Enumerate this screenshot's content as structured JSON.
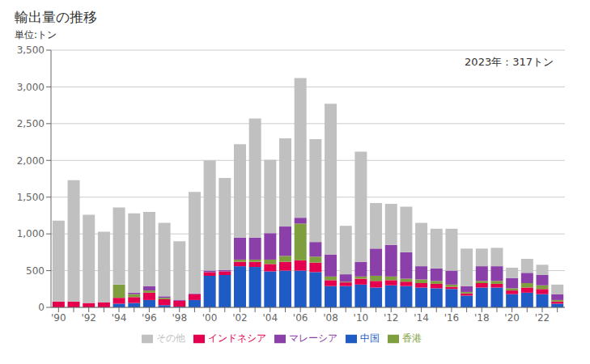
{
  "chart_data": {
    "type": "bar",
    "title": "輸出量の推移",
    "ylabel": "単位:トン",
    "annotation": "2023年：317トン",
    "stacked": true,
    "grid": true,
    "legend": "bottom",
    "ylim": [
      0,
      3500
    ],
    "yticks": [
      0,
      500,
      {
        "value": 1000,
        "label": "1,000"
      },
      {
        "value": 1500,
        "label": "1,500"
      },
      {
        "value": 2000,
        "label": "2,000"
      },
      {
        "value": 2500,
        "label": "2,500"
      },
      {
        "value": 3000,
        "label": "3,000"
      },
      {
        "value": 3500,
        "label": "3,500"
      }
    ],
    "categories": [
      "'90",
      null,
      "'92",
      null,
      "'94",
      null,
      "'96",
      null,
      "'98",
      null,
      "'00",
      null,
      "'02",
      null,
      "'04",
      null,
      "'06",
      null,
      "'08",
      null,
      "'10",
      null,
      "'12",
      null,
      "'14",
      null,
      "'16",
      null,
      "'18",
      null,
      "'20",
      null,
      "'22",
      null
    ],
    "series": [
      {
        "name": "中国",
        "color": "#1F5BC4",
        "values": [
          0,
          0,
          0,
          0,
          50,
          60,
          100,
          30,
          10,
          100,
          430,
          440,
          560,
          550,
          490,
          500,
          500,
          480,
          290,
          290,
          310,
          270,
          300,
          290,
          270,
          260,
          250,
          160,
          270,
          270,
          180,
          200,
          180,
          50
        ]
      },
      {
        "name": "インドネシア",
        "color": "#E5004F",
        "values": [
          80,
          80,
          60,
          70,
          80,
          80,
          100,
          80,
          80,
          80,
          50,
          50,
          60,
          70,
          100,
          120,
          140,
          130,
          80,
          50,
          80,
          90,
          70,
          60,
          60,
          60,
          30,
          30,
          60,
          50,
          50,
          70,
          70,
          30
        ]
      },
      {
        "name": "香港",
        "color": "#7F9F3F",
        "values": [
          0,
          0,
          0,
          0,
          180,
          40,
          30,
          20,
          0,
          0,
          0,
          0,
          30,
          30,
          60,
          80,
          500,
          80,
          50,
          10,
          30,
          70,
          50,
          40,
          50,
          40,
          30,
          20,
          30,
          40,
          30,
          60,
          50,
          20
        ]
      },
      {
        "name": "マレーシア",
        "color": "#8B3FA8",
        "values": [
          0,
          0,
          0,
          0,
          0,
          20,
          60,
          20,
          10,
          10,
          20,
          20,
          300,
          300,
          360,
          400,
          80,
          200,
          300,
          100,
          200,
          370,
          430,
          360,
          180,
          170,
          190,
          80,
          200,
          200,
          140,
          140,
          140,
          80
        ]
      },
      {
        "name": "その他",
        "color": "#C0C0C0",
        "values": [
          1100,
          1650,
          1200,
          960,
          1050,
          1080,
          1010,
          1000,
          800,
          1380,
          1500,
          1250,
          1270,
          1620,
          1000,
          1200,
          1900,
          1400,
          2050,
          660,
          1500,
          620,
          560,
          620,
          590,
          540,
          570,
          510,
          240,
          250,
          140,
          190,
          140,
          130
        ]
      }
    ]
  }
}
